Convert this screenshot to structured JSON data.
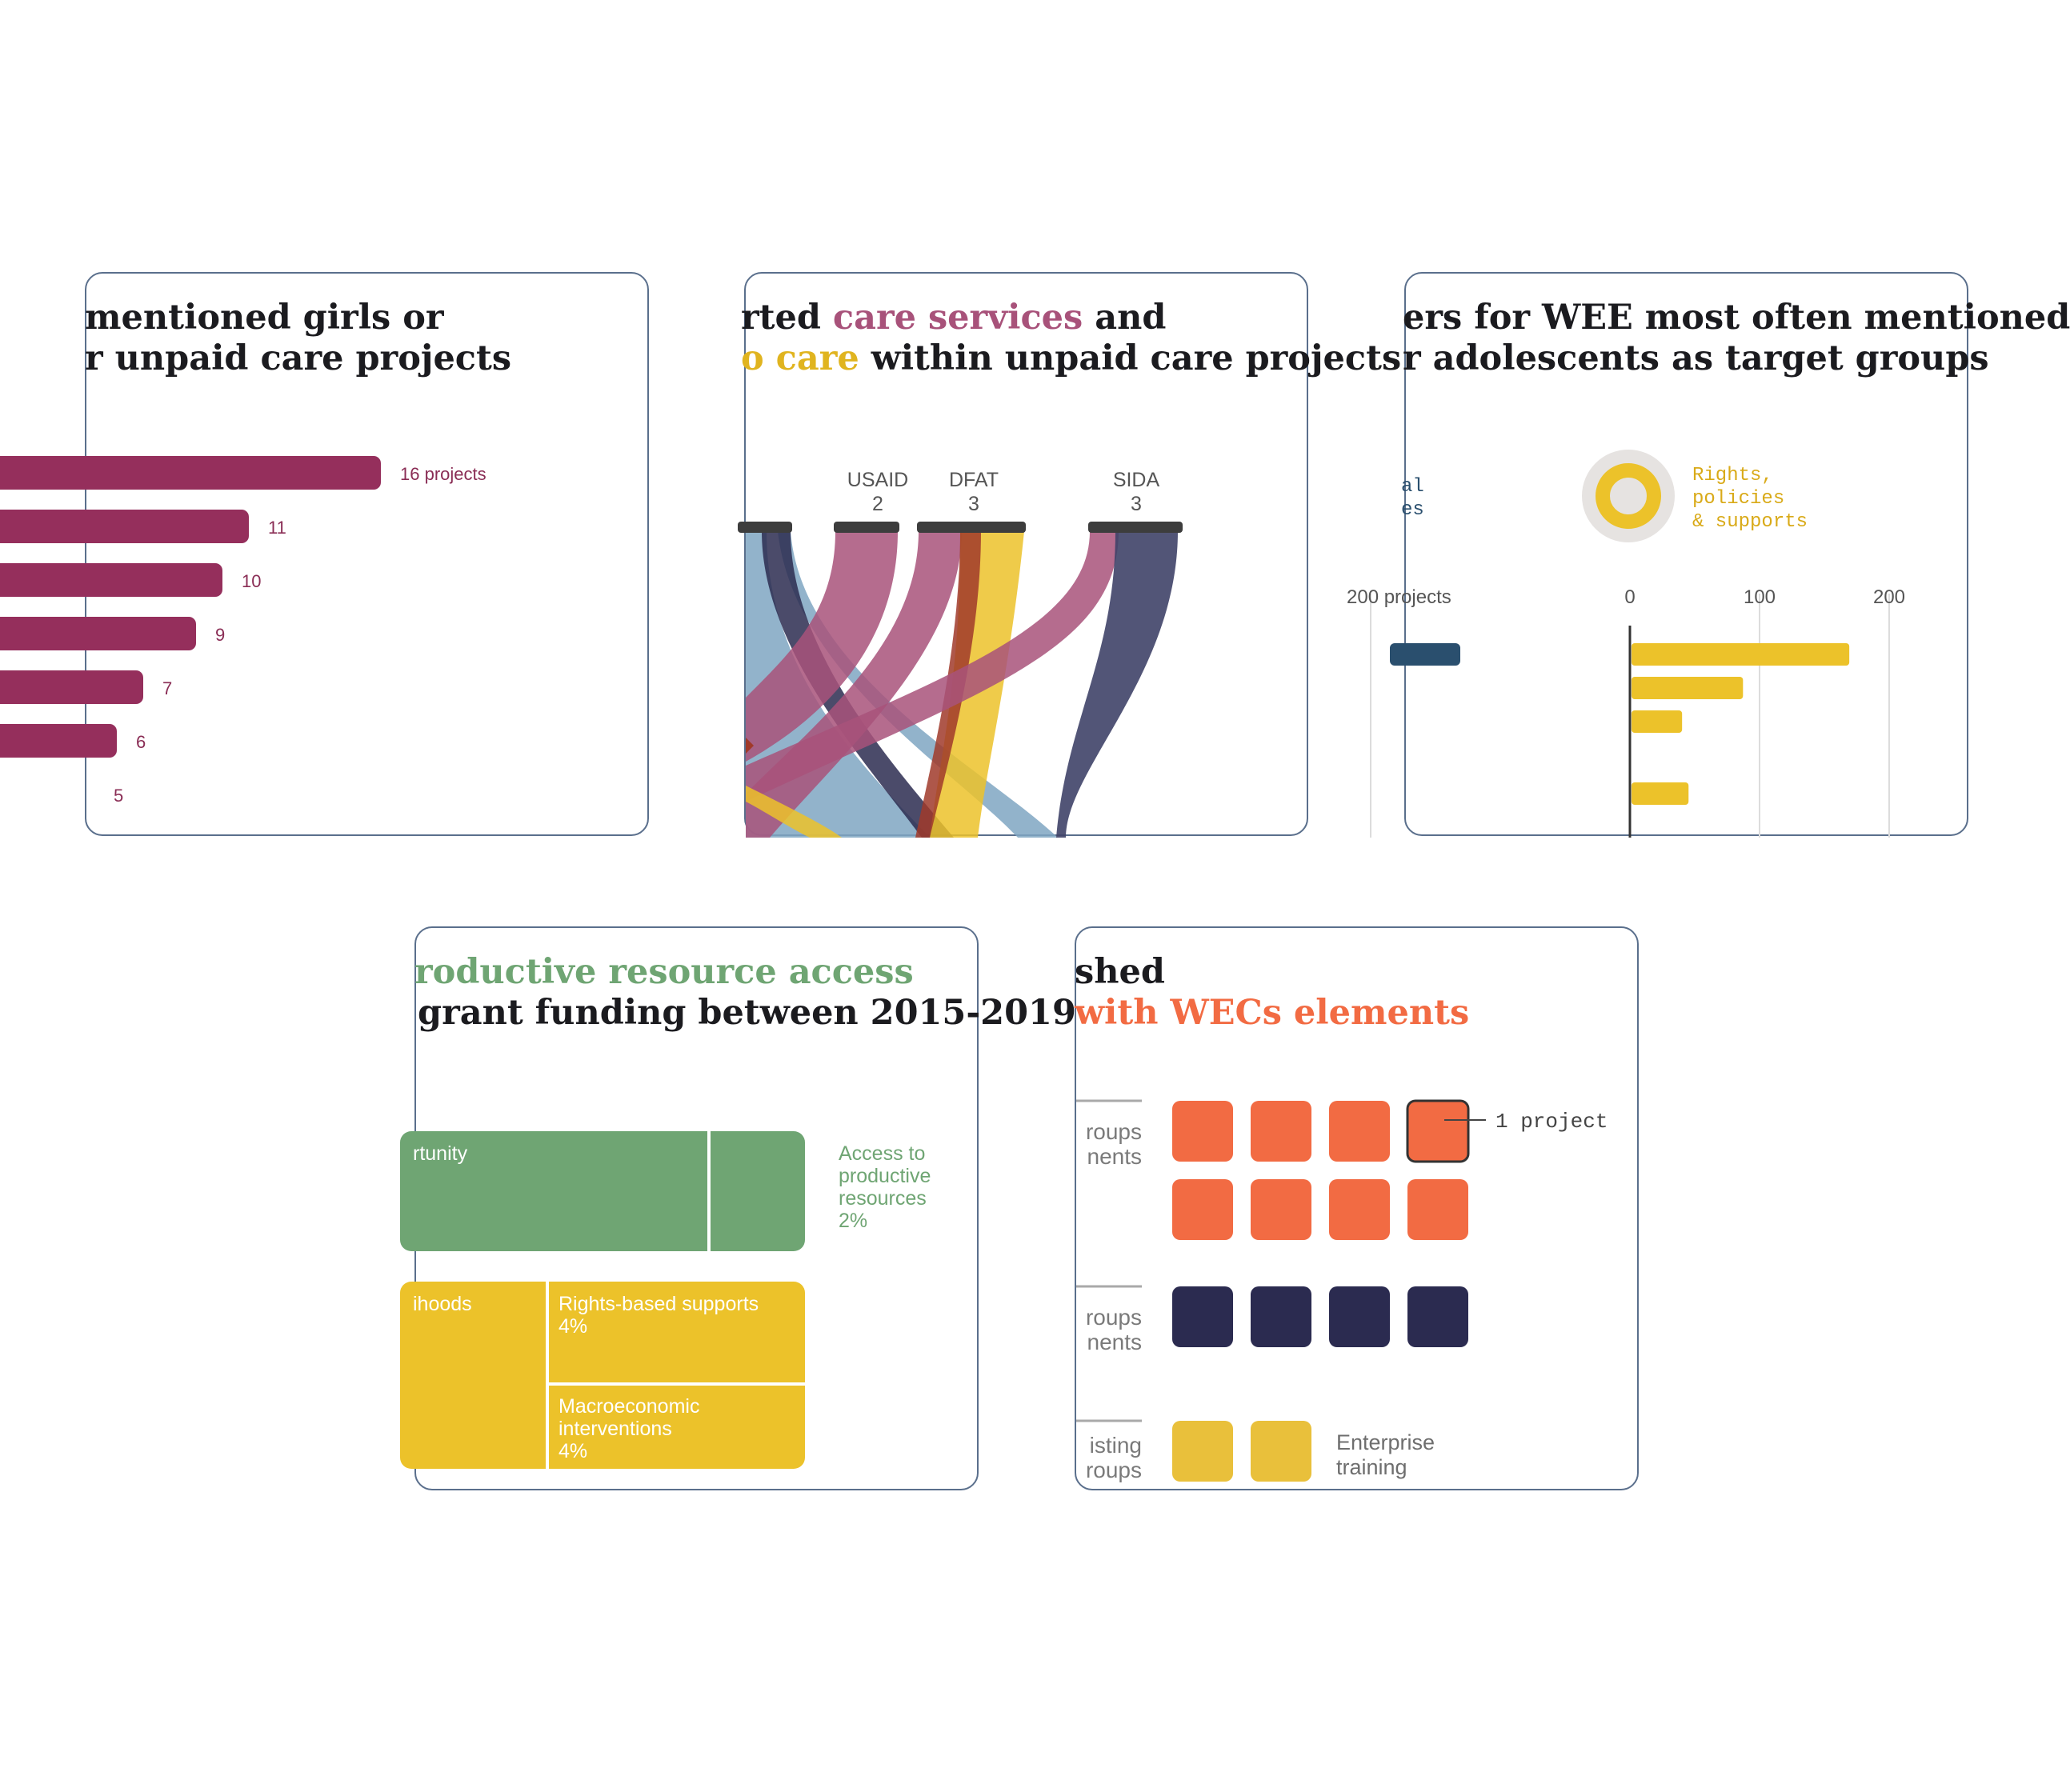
{
  "colors": {
    "plum": "#952f5c",
    "mauve": "#a8527a",
    "navy": "#2b2b50",
    "slate": "#3f4268",
    "steel": "#7fa6c2",
    "gold": "#ecc22a",
    "orange": "#f26b43",
    "green": "#6fa573",
    "darkblue": "#2a4f6e",
    "border": "#5a6f8c",
    "gray": "#6e6e6e"
  },
  "card1": {
    "title_line1": "mentioned girls or",
    "title_line2": "r unpaid care projects",
    "chart_data": {
      "type": "bar",
      "orientation": "horizontal",
      "value_labels": [
        "16 projects",
        "11",
        "10",
        "9",
        "7",
        "6",
        "5"
      ],
      "values": [
        16,
        11,
        10,
        9,
        7,
        6,
        5
      ]
    }
  },
  "card2": {
    "title_line1_a": "rted ",
    "title_line1_b": "care services",
    "title_line1_c": " and",
    "title_line2_a": "o care",
    "title_line2_b": " within unpaid care projects",
    "chart_data": {
      "type": "sankey",
      "nodes": [
        {
          "name": "USAID",
          "value": "2"
        },
        {
          "name": "DFAT",
          "value": "3"
        },
        {
          "name": "SIDA",
          "value": "3"
        }
      ]
    }
  },
  "card3": {
    "title_line1": "ers for WEE most often mentioned",
    "title_line2": "r adolescents as target groups",
    "legend_left": [
      "al",
      "es"
    ],
    "legend_right": [
      "Rights,",
      "policies",
      "& supports"
    ],
    "chart_data": {
      "type": "bar",
      "orientation": "diverging-horizontal",
      "axis_ticks": [
        "200 projects",
        "0",
        "100",
        "200"
      ],
      "right_values": [
        168,
        86,
        39,
        44
      ],
      "left_values": [
        45
      ]
    }
  },
  "card4": {
    "title_line1": "roductive resource access",
    "title_line2": "grant funding between 2015-2019",
    "chart_data": {
      "type": "treemap",
      "cells": [
        {
          "label": "rtunity",
          "percent": ""
        },
        {
          "label": "ihoods",
          "percent": ""
        },
        {
          "label": "Rights-based supports",
          "percent": "4%"
        },
        {
          "label": "Macroeconomic interventions",
          "percent": "4%"
        }
      ],
      "outside_label": {
        "lines": [
          "Access to",
          "productive",
          "resources",
          "2%"
        ]
      }
    }
  },
  "card5": {
    "title_line1": "shed",
    "title_line2": "with WECs elements",
    "row_labels": [
      [
        "roups",
        "nents"
      ],
      [
        "roups",
        "nents"
      ],
      [
        "isting",
        "roups"
      ]
    ],
    "callout": "1 project",
    "enterprise_label": [
      "Enterprise",
      "training"
    ],
    "chart_data": {
      "type": "waffle",
      "unit": "1 project",
      "rows": [
        {
          "count": 8,
          "color": "#f26b43"
        },
        {
          "count": 4,
          "color": "#2b2b50"
        },
        {
          "count": 2,
          "color": "#e9c03b",
          "label": "Enterprise training"
        }
      ]
    }
  }
}
